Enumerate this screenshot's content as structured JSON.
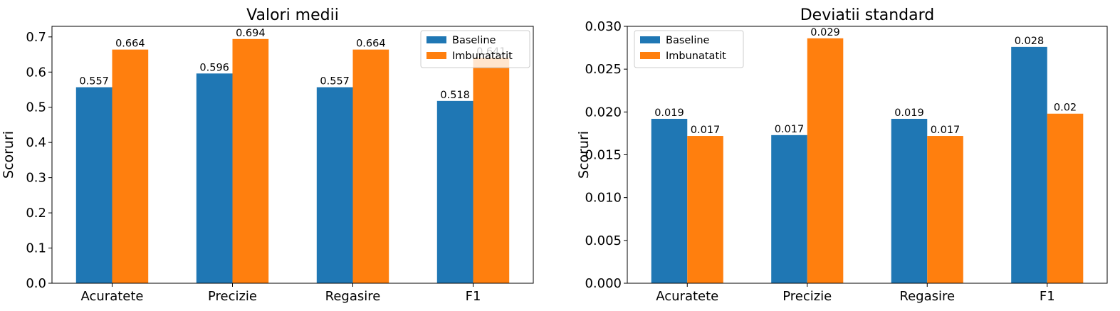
{
  "colors": {
    "baseline": "#1f77b4",
    "imbunatatit": "#ff7f0e"
  },
  "chart_data": [
    {
      "type": "bar",
      "title": "Valori medii",
      "xlabel": "",
      "ylabel": "Scoruri",
      "categories": [
        "Acuratete",
        "Precizie",
        "Regasire",
        "F1"
      ],
      "series": [
        {
          "name": "Baseline",
          "values": [
            0.557,
            0.596,
            0.557,
            0.518
          ],
          "labels": [
            "0.557",
            "0.596",
            "0.557",
            "0.518"
          ]
        },
        {
          "name": "Imbunatatit",
          "values": [
            0.664,
            0.694,
            0.664,
            0.641
          ],
          "labels": [
            "0.664",
            "0.694",
            "0.664",
            "0.641"
          ]
        }
      ],
      "ylim": [
        0,
        0.73
      ],
      "yticks": [
        0.0,
        0.1,
        0.2,
        0.3,
        0.4,
        0.5,
        0.6,
        0.7
      ],
      "ytick_labels": [
        "0.0",
        "0.1",
        "0.2",
        "0.3",
        "0.4",
        "0.5",
        "0.6",
        "0.7"
      ],
      "legend": "top-right",
      "grid": false
    },
    {
      "type": "bar",
      "title": "Deviatii standard",
      "xlabel": "",
      "ylabel": "Scoruri",
      "categories": [
        "Acuratete",
        "Precizie",
        "Regasire",
        "F1"
      ],
      "series": [
        {
          "name": "Baseline",
          "values": [
            0.0192,
            0.0173,
            0.0192,
            0.0276
          ],
          "labels": [
            "0.019",
            "0.017",
            "0.019",
            "0.028"
          ]
        },
        {
          "name": "Imbunatatit",
          "values": [
            0.0172,
            0.0286,
            0.0172,
            0.0198
          ],
          "labels": [
            "0.017",
            "0.029",
            "0.017",
            "0.02"
          ]
        }
      ],
      "ylim": [
        0,
        0.03
      ],
      "yticks": [
        0.0,
        0.005,
        0.01,
        0.015,
        0.02,
        0.025,
        0.03
      ],
      "ytick_labels": [
        "0.000",
        "0.005",
        "0.010",
        "0.015",
        "0.020",
        "0.025",
        "0.030"
      ],
      "legend": "top-left",
      "grid": false
    }
  ]
}
